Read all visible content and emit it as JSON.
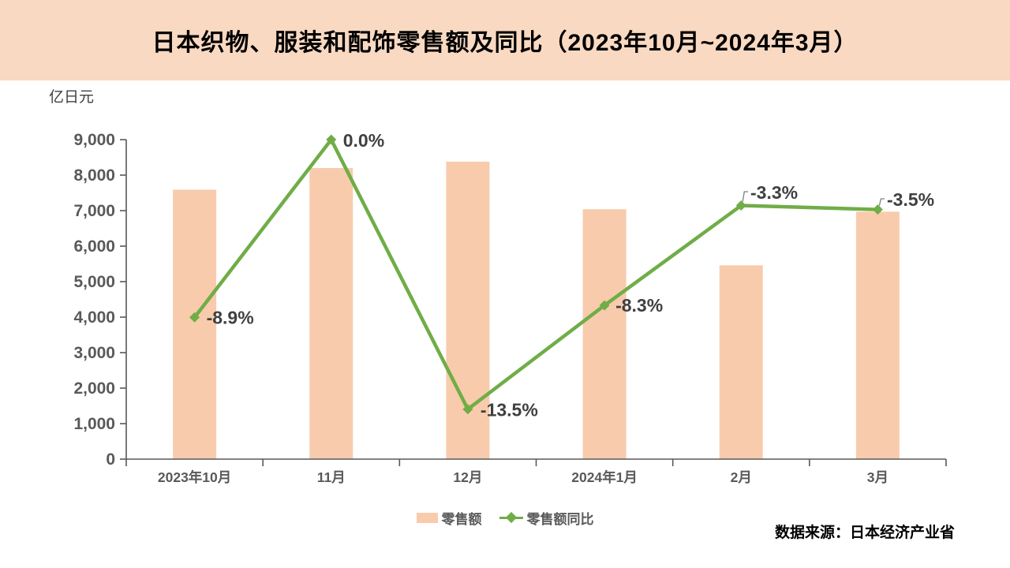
{
  "title": "日本织物、服装和配饰零售额及同比（2023年10月~2024年3月）",
  "unit_label": "亿日元",
  "source": "数据来源：日本经济产业省",
  "colors": {
    "title_band_bg": "#F9D9C2",
    "bar_fill": "#F8CBAD",
    "line_green": "#70AD47",
    "axis_gray": "#595959",
    "tick_label_gray": "#595959",
    "data_label_gray": "#404040",
    "leader_gray": "#7F7F7F"
  },
  "chart_data": {
    "type": "bar",
    "subtype": "bar-line-combo",
    "title": "日本织物、服装和配饰零售额及同比（2023年10月~2024年3月）",
    "categories": [
      "2023年10月",
      "11月",
      "12月",
      "2024年1月",
      "2月",
      "3月"
    ],
    "series": [
      {
        "name": "零售额",
        "type": "bar",
        "axis": "primary",
        "unit": "亿日元",
        "values": [
          7590,
          8200,
          8380,
          7040,
          5460,
          6970
        ]
      },
      {
        "name": "零售额同比",
        "type": "line",
        "axis": "secondary",
        "unit": "%",
        "values": [
          -8.9,
          0.0,
          -13.5,
          -8.3,
          -3.3,
          -3.5
        ],
        "labels": [
          "-8.9%",
          "0.0%",
          "-13.5%",
          "-8.3%",
          "-3.3%",
          "-3.5%"
        ]
      }
    ],
    "xlabel": "",
    "ylabel": "亿日元",
    "ylim": [
      0,
      9000
    ],
    "y_tick_step": 1000,
    "secondary_ylim": [
      -16,
      0
    ],
    "secondary_axis_visible": false,
    "grid": false,
    "legend_position": "bottom",
    "source": "数据来源：日本经济产业省"
  }
}
